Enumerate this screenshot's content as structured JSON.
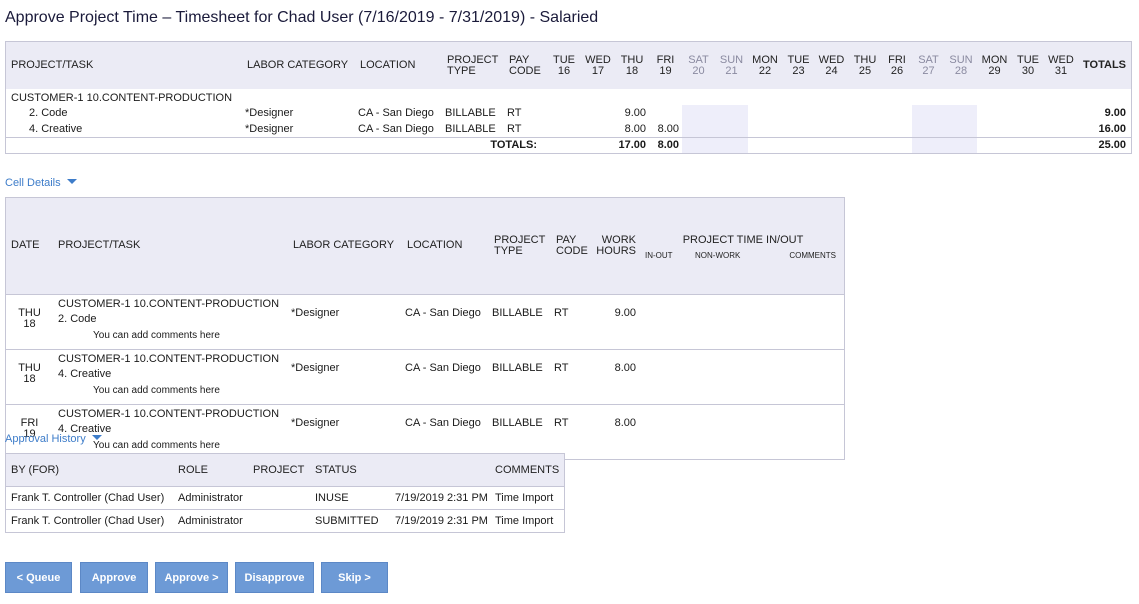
{
  "page_title": "Approve Project Time – Timesheet for Chad User (7/16/2019 - 7/31/2019) - Salaried",
  "timesheet": {
    "headers": {
      "project_task": "PROJECT/TASK",
      "labor_category": "LABOR CATEGORY",
      "location": "LOCATION",
      "project_type": [
        "PROJECT",
        "TYPE"
      ],
      "pay_code": [
        "PAY",
        "CODE"
      ],
      "totals": "TOTALS"
    },
    "days": [
      {
        "dow": "TUE",
        "day": "16",
        "weekend": false
      },
      {
        "dow": "WED",
        "day": "17",
        "weekend": false
      },
      {
        "dow": "THU",
        "day": "18",
        "weekend": false
      },
      {
        "dow": "FRI",
        "day": "19",
        "weekend": false
      },
      {
        "dow": "SAT",
        "day": "20",
        "weekend": true
      },
      {
        "dow": "SUN",
        "day": "21",
        "weekend": true
      },
      {
        "dow": "MON",
        "day": "22",
        "weekend": false
      },
      {
        "dow": "TUE",
        "day": "23",
        "weekend": false
      },
      {
        "dow": "WED",
        "day": "24",
        "weekend": false
      },
      {
        "dow": "THU",
        "day": "25",
        "weekend": false
      },
      {
        "dow": "FRI",
        "day": "26",
        "weekend": false
      },
      {
        "dow": "SAT",
        "day": "27",
        "weekend": true
      },
      {
        "dow": "SUN",
        "day": "28",
        "weekend": true
      },
      {
        "dow": "MON",
        "day": "29",
        "weekend": false
      },
      {
        "dow": "TUE",
        "day": "30",
        "weekend": false
      },
      {
        "dow": "WED",
        "day": "31",
        "weekend": false
      }
    ],
    "project": "CUSTOMER-1 10.CONTENT-PRODUCTION",
    "rows": [
      {
        "task": "2. Code",
        "labor": "*Designer",
        "location": "CA - San Diego",
        "type": "BILLABLE",
        "pay": "RT",
        "hours": [
          "",
          "",
          "9.00",
          "",
          "",
          "",
          "",
          "",
          "",
          "",
          "",
          "",
          "",
          "",
          "",
          ""
        ],
        "total": "9.00"
      },
      {
        "task": "4. Creative",
        "labor": "*Designer",
        "location": "CA - San Diego",
        "type": "BILLABLE",
        "pay": "RT",
        "hours": [
          "",
          "",
          "8.00",
          "8.00",
          "",
          "",
          "",
          "",
          "",
          "",
          "",
          "",
          "",
          "",
          "",
          ""
        ],
        "total": "16.00"
      }
    ],
    "totals_label": "TOTALS:",
    "day_totals": [
      "",
      "",
      "17.00",
      "8.00",
      "",
      "",
      "",
      "",
      "",
      "",
      "",
      "",
      "",
      "",
      "",
      ""
    ],
    "grand_total": "25.00"
  },
  "cell_details": {
    "toggle_label": "Cell Details",
    "headers": {
      "date": "DATE",
      "project_task": "PROJECT/TASK",
      "labor_category": "LABOR CATEGORY",
      "location": "LOCATION",
      "project_type": [
        "PROJECT",
        "TYPE"
      ],
      "pay_code": [
        "PAY",
        "CODE"
      ],
      "work_hours": [
        "WORK",
        "HOURS"
      ],
      "project_time": "PROJECT TIME IN/OUT",
      "in_out": "IN-OUT",
      "non_work": "NON-WORK",
      "comments": "COMMENTS"
    },
    "entries": [
      {
        "dow": "THU",
        "day": "18",
        "project": "CUSTOMER-1 10.CONTENT-PRODUCTION",
        "task": "2. Code",
        "labor": "*Designer",
        "location": "CA - San Diego",
        "type": "BILLABLE",
        "pay": "RT",
        "hours": "9.00",
        "comment": "You can add comments here"
      },
      {
        "dow": "THU",
        "day": "18",
        "project": "CUSTOMER-1 10.CONTENT-PRODUCTION",
        "task": "4. Creative",
        "labor": "*Designer",
        "location": "CA - San Diego",
        "type": "BILLABLE",
        "pay": "RT",
        "hours": "8.00",
        "comment": "You can add comments here"
      },
      {
        "dow": "FRI",
        "day": "19",
        "project": "CUSTOMER-1 10.CONTENT-PRODUCTION",
        "task": "4. Creative",
        "labor": "*Designer",
        "location": "CA - San Diego",
        "type": "BILLABLE",
        "pay": "RT",
        "hours": "8.00",
        "comment": "You can add comments here"
      }
    ]
  },
  "approval_history": {
    "toggle_label": "Approval History",
    "headers": {
      "by": "BY (FOR)",
      "role": "ROLE",
      "project": "PROJECT",
      "status": "STATUS",
      "comments": "COMMENTS"
    },
    "rows": [
      {
        "by": "Frank T. Controller (Chad User)",
        "role": "Administrator",
        "project": "",
        "status": "INUSE",
        "date": "7/19/2019 2:31 PM",
        "comments": "Time Import"
      },
      {
        "by": "Frank T. Controller (Chad User)",
        "role": "Administrator",
        "project": "",
        "status": "SUBMITTED",
        "date": "7/19/2019 2:31 PM",
        "comments": "Time Import"
      }
    ]
  },
  "buttons": {
    "queue": "< Queue",
    "approve": "Approve",
    "approve_next": "Approve >",
    "disapprove": "Disapprove",
    "skip": "Skip >"
  },
  "colors": {
    "header_bg": "#ebebf5",
    "weekend_bg": "#eeeefa",
    "link": "#3d7cc9",
    "button_bg": "#6d9ad6"
  }
}
